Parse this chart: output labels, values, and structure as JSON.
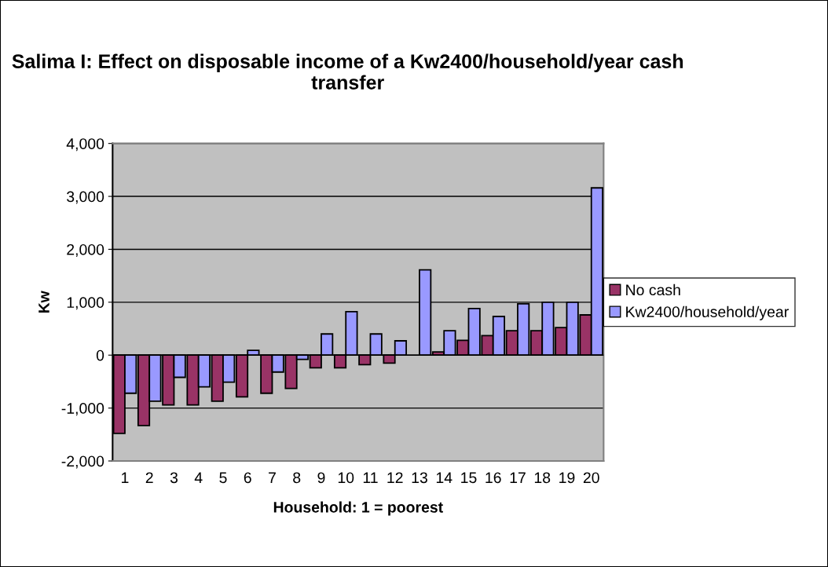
{
  "chart_data": {
    "type": "bar",
    "title": "Salima I: Effect on disposable income of a Kw2400/household/year cash transfer",
    "xlabel": "Household: 1 = poorest",
    "ylabel": "Kw",
    "categories": [
      "1",
      "2",
      "3",
      "4",
      "5",
      "6",
      "7",
      "8",
      "9",
      "10",
      "11",
      "12",
      "13",
      "14",
      "15",
      "16",
      "17",
      "18",
      "19",
      "20"
    ],
    "series": [
      {
        "name": "No cash",
        "color": "#993366",
        "values": [
          -1480,
          -1330,
          -940,
          -940,
          -870,
          -790,
          -720,
          -630,
          -240,
          -240,
          -180,
          -150,
          null,
          60,
          280,
          370,
          460,
          460,
          520,
          760
        ]
      },
      {
        "name": "Kw2400/household/year",
        "color": "#9999ff",
        "values": [
          -720,
          -870,
          -420,
          -600,
          -510,
          90,
          -320,
          -80,
          400,
          820,
          400,
          270,
          1610,
          460,
          880,
          730,
          970,
          1000,
          1000,
          3160
        ]
      }
    ],
    "ylim": [
      -2000,
      4000
    ],
    "yticks": [
      {
        "value": -2000,
        "label": "-2,000"
      },
      {
        "value": -1000,
        "label": "-1,000"
      },
      0,
      {
        "value": 1000,
        "label": "1,000"
      },
      {
        "value": 2000,
        "label": "2,000"
      },
      {
        "value": 3000,
        "label": "3,000"
      },
      {
        "value": 4000,
        "label": "4,000"
      }
    ],
    "grid": "y",
    "legend": "right"
  }
}
